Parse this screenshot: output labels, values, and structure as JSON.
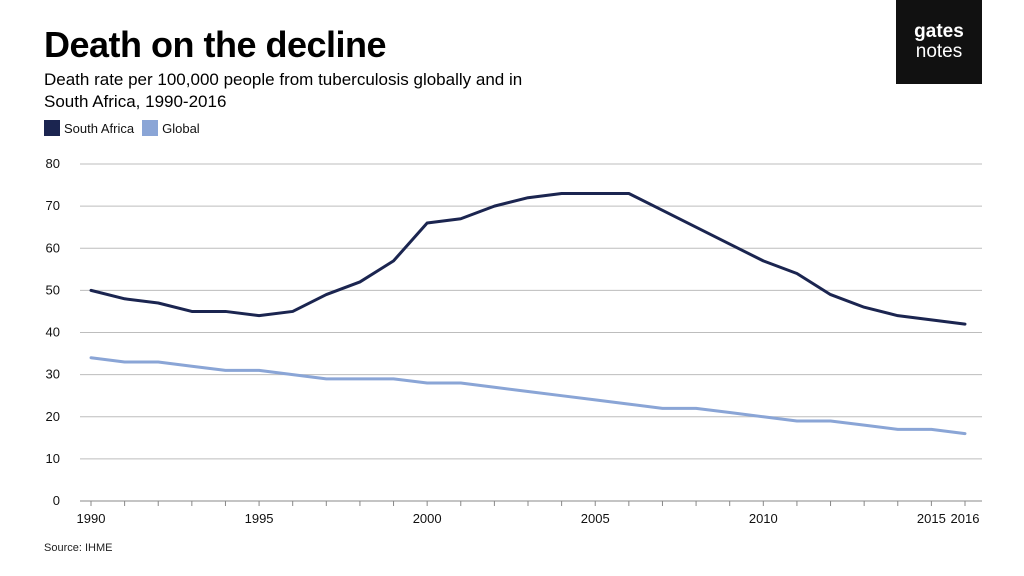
{
  "header": {
    "title": "Death on the decline",
    "subtitle": "Death rate per 100,000 people from tuberculosis globally and in South Africa, 1990-2016"
  },
  "logo": {
    "line1": "gates",
    "line2": "notes"
  },
  "source": "Source: IHME",
  "chart_data": {
    "type": "line",
    "title": "Death on the decline",
    "subtitle": "Death rate per 100,000 people from tuberculosis globally and in South Africa, 1990-2016",
    "xlabel": "",
    "ylabel": "",
    "x": [
      1990,
      1991,
      1992,
      1993,
      1994,
      1995,
      1996,
      1997,
      1998,
      1999,
      2000,
      2001,
      2002,
      2003,
      2004,
      2005,
      2006,
      2007,
      2008,
      2009,
      2010,
      2011,
      2012,
      2013,
      2014,
      2015,
      2016
    ],
    "xticks": [
      1990,
      1995,
      2000,
      2005,
      2010,
      2015,
      2016
    ],
    "ylim": [
      0,
      80
    ],
    "yticks": [
      0,
      10,
      20,
      30,
      40,
      50,
      60,
      70,
      80
    ],
    "grid": true,
    "legend_position": "top-left",
    "series": [
      {
        "name": "South Africa",
        "color": "#1b2550",
        "values": [
          50,
          48,
          47,
          45,
          45,
          44,
          45,
          49,
          52,
          57,
          66,
          67,
          70,
          72,
          73,
          73,
          73,
          69,
          65,
          61,
          57,
          54,
          49,
          46,
          44,
          43,
          42
        ]
      },
      {
        "name": "Global",
        "color": "#8aa5d6",
        "values": [
          34,
          33,
          33,
          32,
          31,
          31,
          30,
          29,
          29,
          29,
          28,
          28,
          27,
          26,
          25,
          24,
          23,
          22,
          22,
          21,
          20,
          19,
          19,
          18,
          17,
          17,
          16
        ]
      }
    ]
  }
}
